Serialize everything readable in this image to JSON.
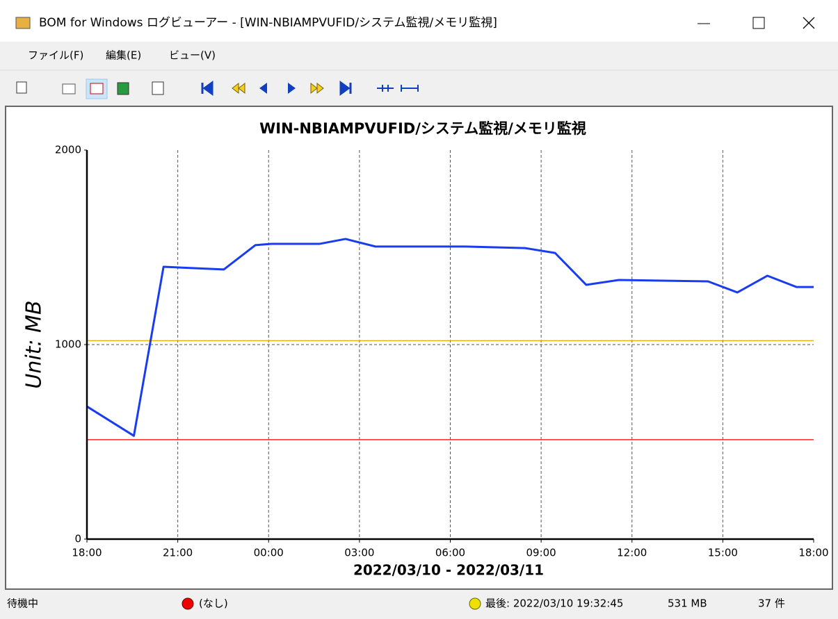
{
  "window": {
    "title": "BOM for Windows ログビューアー - [WIN-NBIAMPVUFID/システム監視/メモリ監視]"
  },
  "menu": [
    "ファイル(F)",
    "編集(E)",
    "ビュー(V)"
  ],
  "status": {
    "state": "待機中",
    "alert": "(なし)",
    "last": "最後: 2022/03/10 19:32:45",
    "last_value": "531 MB",
    "count": "37 件"
  },
  "chart_data": {
    "type": "line",
    "title": "WIN-NBIAMPVUFID/システム監視/メモリ監視",
    "ylabel": "Unit: MB",
    "xlabel": "2022/03/10 - 2022/03/11",
    "x": [
      0,
      1.55,
      2.53,
      4.52,
      5.56,
      6.09,
      7.69,
      8.54,
      9.53,
      12.5,
      14.47,
      15.46,
      16.49,
      17.57,
      20.51,
      21.48,
      22.47,
      23.43,
      24
    ],
    "values": [
      682,
      531,
      1400,
      1386,
      1511,
      1518,
      1518,
      1543,
      1504,
      1504,
      1496,
      1471,
      1307,
      1332,
      1325,
      1268,
      1354,
      1296,
      1296
    ],
    "color": "#1a3cf0",
    "xlim": [
      0,
      24
    ],
    "xticks": [
      {
        "value": 0,
        "label": "18:00"
      },
      {
        "value": 3,
        "label": "21:00"
      },
      {
        "value": 6,
        "label": "00:00"
      },
      {
        "value": 9,
        "label": "03:00"
      },
      {
        "value": 12,
        "label": "06:00"
      },
      {
        "value": 15,
        "label": "09:00"
      },
      {
        "value": 18,
        "label": "12:00"
      },
      {
        "value": 21,
        "label": "15:00"
      },
      {
        "value": 24,
        "label": "18:00"
      }
    ],
    "ylim": [
      0,
      2000
    ],
    "yticks": [
      0,
      1000,
      2000
    ],
    "grid": true,
    "thresholds": [
      {
        "value": 1020,
        "color": "#f0b400"
      },
      {
        "value": 511,
        "color": "#ff2020"
      }
    ]
  }
}
